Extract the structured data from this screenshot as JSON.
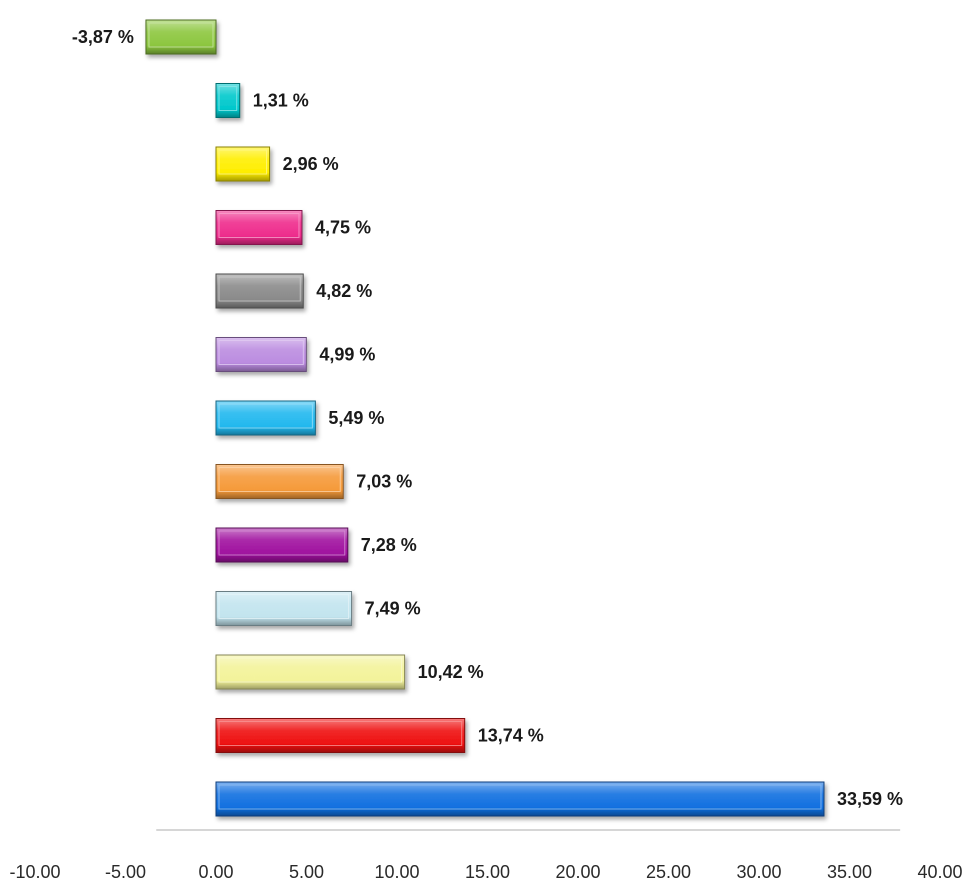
{
  "chart_data": {
    "type": "bar",
    "orientation": "horizontal",
    "categories": [
      "",
      "",
      "",
      "",
      "",
      "",
      "",
      "",
      "",
      "",
      "",
      "",
      ""
    ],
    "values": [
      -3.87,
      1.31,
      2.96,
      4.75,
      4.82,
      4.99,
      5.49,
      7.03,
      7.28,
      7.49,
      10.42,
      13.74,
      33.59
    ],
    "value_labels": [
      "-3,87 %",
      "1,31 %",
      "2,96 %",
      "4,75 %",
      "4,82 %",
      "4,99 %",
      "5,49 %",
      "7,03 %",
      "7,28 %",
      "7,49 %",
      "10,42 %",
      "13,74 %",
      "33,59 %"
    ],
    "colors": [
      "#8cc63f",
      "#00c8cc",
      "#ffee00",
      "#ee2c8c",
      "#8a8a8a",
      "#bb8ce0",
      "#22b8ee",
      "#f59a3a",
      "#a0129f",
      "#c2e4ee",
      "#f3f39a",
      "#ee1111",
      "#1170e0"
    ],
    "xlim": [
      -10,
      40
    ],
    "xticks": [
      "-10.00",
      "-5.00",
      "0.00",
      "5.00",
      "10.00",
      "15.00",
      "20.00",
      "25.00",
      "30.00",
      "35.00",
      "40.00"
    ],
    "xtick_values": [
      -10,
      -5,
      0,
      5,
      10,
      15,
      20,
      25,
      30,
      35,
      40
    ],
    "grid": false,
    "legend": "none",
    "title": "",
    "xlabel": "",
    "ylabel": ""
  }
}
